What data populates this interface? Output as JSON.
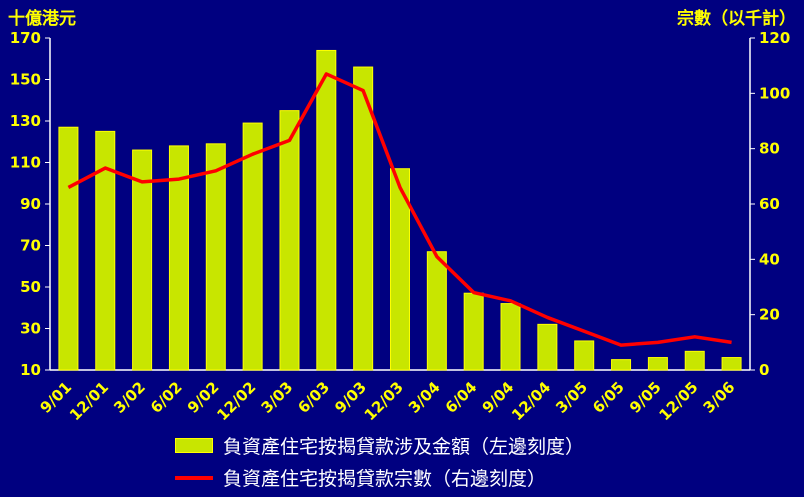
{
  "chart_data": {
    "type": "bar",
    "y_left_label": "十億港元",
    "y_right_label": "宗數（以千計）",
    "ylim_left": [
      10,
      170
    ],
    "yticks_left": [
      10,
      30,
      50,
      70,
      90,
      110,
      130,
      150,
      170
    ],
    "ylim_right": [
      0,
      120
    ],
    "yticks_right": [
      0,
      20,
      40,
      60,
      80,
      100,
      120
    ],
    "categories": [
      "9/01",
      "12/01",
      "3/02",
      "6/02",
      "9/02",
      "12/02",
      "3/03",
      "6/03",
      "9/03",
      "12/03",
      "3/04",
      "6/04",
      "9/04",
      "12/04",
      "3/05",
      "6/05",
      "9/05",
      "12/05",
      "3/06"
    ],
    "series": [
      {
        "name": "負資產住宅按揭貸款涉及金額（左邊刻度）",
        "type": "bar",
        "axis": "left",
        "color": "#c8e600",
        "values": [
          127,
          125,
          116,
          118,
          119,
          129,
          135,
          164,
          156,
          107,
          67,
          47,
          42,
          32,
          24,
          15,
          16,
          19,
          16
        ]
      },
      {
        "name": "負資產住宅按揭貸款宗數（右邊刻度）",
        "type": "line",
        "axis": "right",
        "color": "#ff0000",
        "values": [
          66,
          73,
          68,
          69,
          72,
          78,
          83,
          107,
          101,
          66,
          41,
          28,
          25,
          19,
          14,
          9,
          10,
          12,
          10
        ]
      }
    ],
    "grid": false,
    "legend_position": "bottom"
  }
}
